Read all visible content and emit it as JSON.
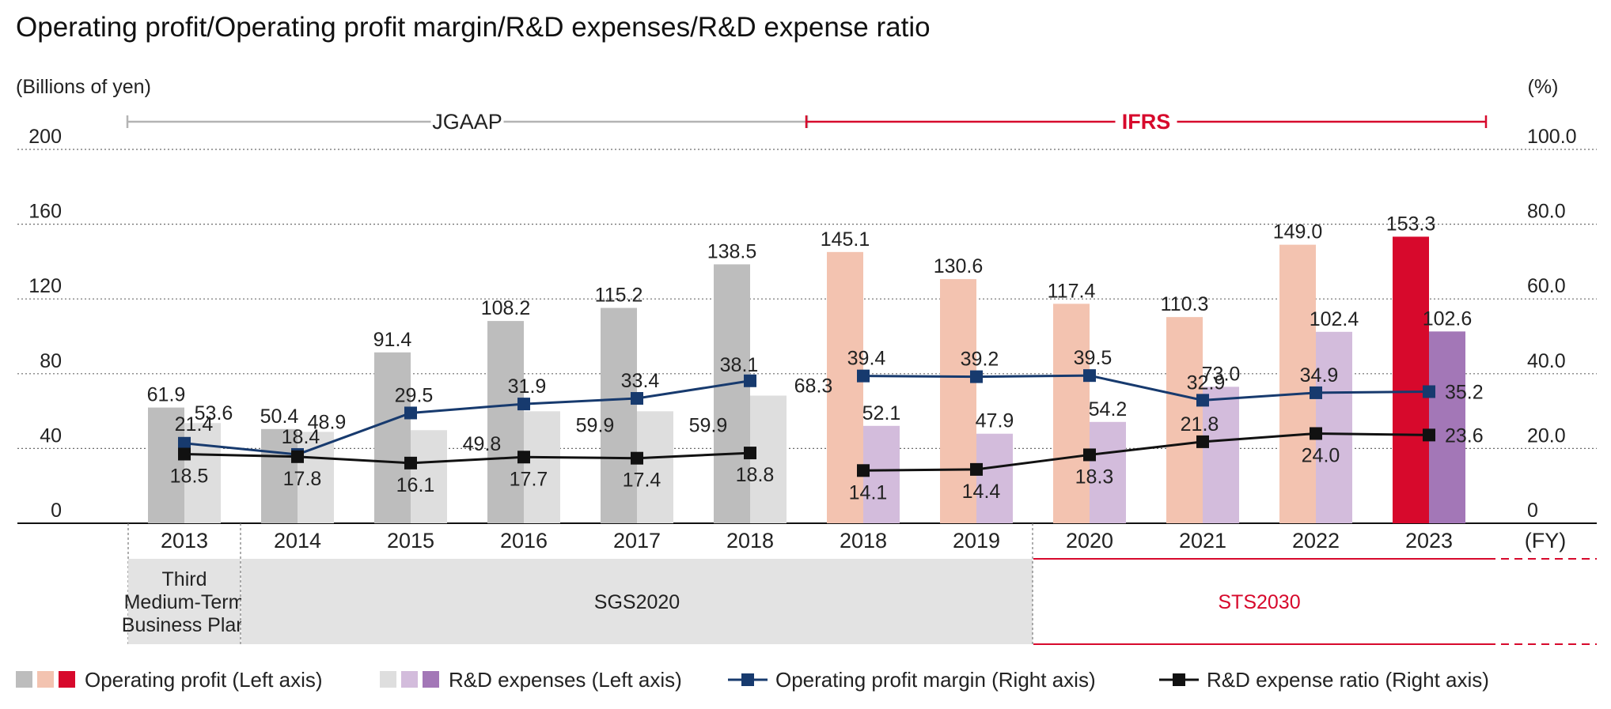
{
  "chart_data": {
    "type": "bar",
    "title": "Operating profit/Operating profit margin/R&D expenses/R&D expense ratio",
    "ylabel_left": "(Billions of yen)",
    "ylabel_right": "(%)",
    "xlabel": "(FY)",
    "ylim_left": [
      0,
      200
    ],
    "ylim_right": [
      0,
      100
    ],
    "left_ticks": [
      "0",
      "40",
      "80",
      "120",
      "160",
      "200"
    ],
    "right_ticks": [
      "0",
      "20.0",
      "40.0",
      "60.0",
      "80.0",
      "100.0"
    ],
    "categories": [
      "2013",
      "2014",
      "2015",
      "2016",
      "2017",
      "2018",
      "2018",
      "2019",
      "2020",
      "2021",
      "2022",
      "2023"
    ],
    "accounting_standards": [
      {
        "label": "JGAAP",
        "from": 0,
        "to": 5,
        "color": "#b4b4b4"
      },
      {
        "label": "IFRS",
        "from": 6,
        "to": 11,
        "color": "#d7092c"
      }
    ],
    "series": [
      {
        "name": "Operating profit (Left axis)",
        "kind": "bar",
        "axis": "left",
        "values": [
          61.9,
          50.4,
          91.4,
          108.2,
          115.2,
          138.5,
          145.1,
          130.6,
          117.4,
          110.3,
          149.0,
          153.3
        ],
        "labels": [
          "61.9",
          "50.4",
          "91.4",
          "108.2",
          "115.2",
          "138.5",
          "145.1",
          "130.6",
          "117.4",
          "110.3",
          "149.0",
          "153.3"
        ],
        "colors": [
          "#bdbdbd",
          "#bdbdbd",
          "#bdbdbd",
          "#bdbdbd",
          "#bdbdbd",
          "#bdbdbd",
          "#f3c3b0",
          "#f3c3b0",
          "#f3c3b0",
          "#f3c3b0",
          "#f3c3b0",
          "#d7092c"
        ]
      },
      {
        "name": "R&D expenses (Left axis)",
        "kind": "bar",
        "axis": "left",
        "values": [
          53.6,
          48.9,
          49.8,
          59.9,
          59.9,
          68.3,
          52.1,
          47.9,
          54.2,
          73.0,
          102.4,
          102.6
        ],
        "labels": [
          "53.6",
          "48.9",
          "49.8",
          "59.9",
          "59.9",
          "68.3",
          "52.1",
          "47.9",
          "54.2",
          "73.0",
          "102.4",
          "102.6"
        ],
        "colors": [
          "#dedede",
          "#dedede",
          "#dedede",
          "#dedede",
          "#dedede",
          "#dedede",
          "#d3bcdc",
          "#d3bcdc",
          "#d3bcdc",
          "#d3bcdc",
          "#d3bcdc",
          "#a377b7"
        ]
      },
      {
        "name": "Operating profit margin (Right axis)",
        "kind": "line",
        "axis": "right",
        "color": "#173a6e",
        "segments": [
          [
            0,
            5
          ],
          [
            6,
            11
          ]
        ],
        "values": [
          21.4,
          18.4,
          29.5,
          31.9,
          33.4,
          38.1,
          39.4,
          39.2,
          39.5,
          32.9,
          34.9,
          35.2
        ],
        "labels": [
          "21.4",
          "18.4",
          "29.5",
          "31.9",
          "33.4",
          "38.1",
          "39.4",
          "39.2",
          "39.5",
          "32.9",
          "34.9",
          "35.2"
        ]
      },
      {
        "name": "R&D expense ratio (Right axis)",
        "kind": "line",
        "axis": "right",
        "color": "#111111",
        "segments": [
          [
            0,
            5
          ],
          [
            6,
            11
          ]
        ],
        "values": [
          18.5,
          17.8,
          16.1,
          17.7,
          17.4,
          18.8,
          14.1,
          14.4,
          18.3,
          21.8,
          24.0,
          23.6
        ],
        "labels": [
          "18.5",
          "17.8",
          "16.1",
          "17.7",
          "17.4",
          "18.8",
          "14.1",
          "14.4",
          "18.3",
          "21.8",
          "24.0",
          "23.6"
        ]
      }
    ],
    "plans": [
      {
        "label": "Third\nMedium-Term\nBusiness Plan",
        "from": 0,
        "to": 0,
        "color": "#222222"
      },
      {
        "label": "SGS2020",
        "from": 1,
        "to": 7,
        "color": "#222222"
      },
      {
        "label": "STS2030",
        "from": 8,
        "to": 11,
        "color": "#d7092c"
      }
    ],
    "legend": [
      {
        "label": "Operating profit (Left axis)",
        "swatches": [
          "#bdbdbd",
          "#f3c3b0",
          "#d7092c"
        ],
        "kind": "bar"
      },
      {
        "label": "R&D expenses (Left axis)",
        "swatches": [
          "#dedede",
          "#d3bcdc",
          "#a377b7"
        ],
        "kind": "bar"
      },
      {
        "label": "Operating profit margin (Right axis)",
        "color": "#173a6e",
        "kind": "line"
      },
      {
        "label": "R&D expense ratio (Right axis)",
        "color": "#111111",
        "kind": "line"
      }
    ]
  }
}
